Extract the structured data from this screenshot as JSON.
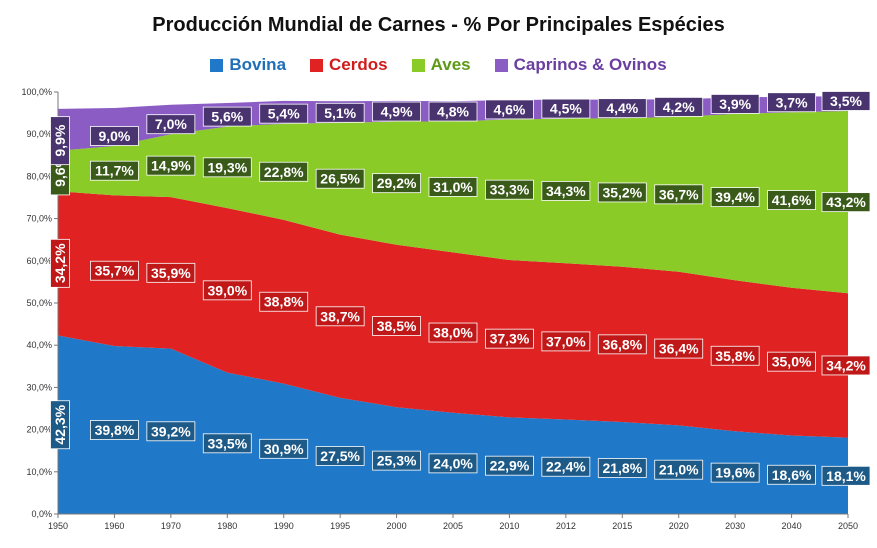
{
  "chart_data": {
    "type": "area",
    "stacked": true,
    "title": "Producción Mundial  de Carnes - % Por Principales Espécies",
    "categories": [
      "1950",
      "1960",
      "1970",
      "1980",
      "1990",
      "1995",
      "2000",
      "2005",
      "2010",
      "2012",
      "2015",
      "2020",
      "2030",
      "2040",
      "2050"
    ],
    "ylim": [
      0,
      100
    ],
    "yticks": [
      "0,0%",
      "10,0%",
      "20,0%",
      "30,0%",
      "40,0%",
      "50,0%",
      "60,0%",
      "70,0%",
      "80,0%",
      "90,0%",
      "100,0%"
    ],
    "grid": false,
    "legend_position": "top",
    "series": [
      {
        "name": "Bovina",
        "color": "#1f78c8",
        "label_bg": "#1d5a88",
        "values": [
          42.3,
          39.8,
          39.2,
          33.5,
          30.9,
          27.5,
          25.3,
          24.0,
          22.9,
          22.4,
          21.8,
          21.0,
          19.6,
          18.6,
          18.1
        ],
        "labels": [
          "42,3%",
          "39,8%",
          "39,2%",
          "33,5%",
          "30,9%",
          "27,5%",
          "25,3%",
          "24,0%",
          "22,9%",
          "22,4%",
          "21,8%",
          "21,0%",
          "19,6%",
          "18,6%",
          "18,1%"
        ]
      },
      {
        "name": "Cerdos",
        "color": "#e02222",
        "label_bg": "#c01818",
        "values": [
          34.2,
          35.7,
          35.9,
          39.0,
          38.8,
          38.7,
          38.5,
          38.0,
          37.3,
          37.0,
          36.8,
          36.4,
          35.8,
          35.0,
          34.2
        ],
        "labels": [
          "34,2%",
          "35,7%",
          "35,9%",
          "39,0%",
          "38,8%",
          "38,7%",
          "38,5%",
          "38,0%",
          "37,3%",
          "37,0%",
          "36,8%",
          "36,4%",
          "35,8%",
          "35,0%",
          "34,2%"
        ]
      },
      {
        "name": "Aves",
        "color": "#8acb28",
        "label_bg": "#3a5a1a",
        "values": [
          9.6,
          11.7,
          14.9,
          19.3,
          22.8,
          26.5,
          29.2,
          31.0,
          33.3,
          34.3,
          35.2,
          36.7,
          39.4,
          41.6,
          43.2
        ],
        "labels": [
          "9,6%",
          "11,7%",
          "14,9%",
          "19,3%",
          "22,8%",
          "26,5%",
          "29,2%",
          "31,0%",
          "33,3%",
          "34,3%",
          "35,2%",
          "36,7%",
          "39,4%",
          "41,6%",
          "43,2%"
        ]
      },
      {
        "name": "Caprinos & Ovinos",
        "color": "#8a5cc4",
        "label_bg": "#4a3470",
        "values": [
          9.9,
          9.0,
          7.0,
          5.6,
          5.4,
          5.1,
          4.9,
          4.8,
          4.6,
          4.5,
          4.4,
          4.2,
          3.9,
          3.7,
          3.5
        ],
        "labels": [
          "9,9%",
          "9,0%",
          "7,0%",
          "5,6%",
          "5,4%",
          "5,1%",
          "4,9%",
          "4,8%",
          "4,6%",
          "4,5%",
          "4,4%",
          "4,2%",
          "3,9%",
          "3,7%",
          "3,5%"
        ]
      }
    ]
  }
}
